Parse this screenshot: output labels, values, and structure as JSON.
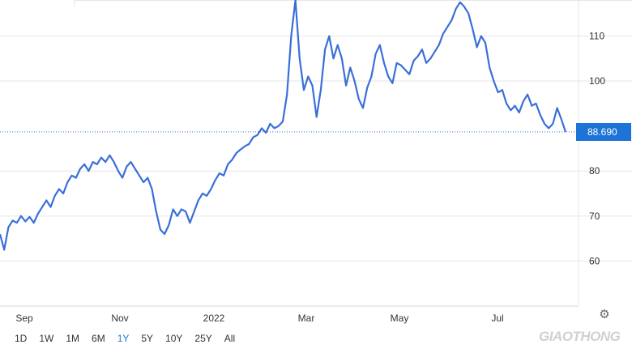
{
  "chart_data": {
    "type": "line",
    "title": "",
    "xlabel": "",
    "ylabel": "",
    "x_tick_labels": [
      "Sep",
      "Nov",
      "2022",
      "Mar",
      "May",
      "Jul"
    ],
    "y_tick_labels": [
      "60",
      "70",
      "80",
      "100",
      "110"
    ],
    "ylim": [
      50,
      118
    ],
    "last_value_label": "88.690",
    "line_color": "#3a6fd8",
    "series": [
      {
        "values": [
          66.0,
          62.5,
          67.5,
          69.0,
          68.5,
          70.0,
          68.8,
          69.8,
          68.5,
          70.5,
          72.0,
          73.5,
          72.0,
          74.5,
          76.0,
          75.0,
          77.5,
          79.0,
          78.5,
          80.5,
          81.5,
          80.0,
          82.0,
          81.5,
          83.0,
          82.0,
          83.5,
          82.0,
          80.0,
          78.5,
          81.0,
          82.0,
          80.5,
          79.0,
          77.5,
          78.5,
          76.0,
          71.0,
          67.0,
          66.0,
          68.0,
          71.5,
          70.0,
          71.5,
          71.0,
          68.5,
          71.0,
          73.5,
          75.0,
          74.5,
          76.0,
          78.0,
          79.5,
          79.0,
          81.5,
          82.5,
          84.0,
          84.8,
          85.5,
          86.0,
          87.5,
          88.0,
          89.5,
          88.5,
          90.5,
          89.5,
          90.0,
          91.0,
          97.0,
          110.0,
          118.0,
          105.0,
          98.0,
          101.0,
          99.0,
          92.0,
          98.0,
          107.0,
          110.0,
          105.0,
          108.0,
          105.0,
          99.0,
          103.0,
          100.0,
          96.0,
          94.0,
          98.5,
          101.0,
          106.0,
          108.0,
          104.0,
          101.0,
          99.5,
          104.0,
          103.5,
          102.5,
          101.5,
          104.5,
          105.5,
          107.0,
          104.0,
          105.0,
          106.5,
          108.0,
          110.5,
          112.0,
          113.5,
          116.0,
          117.5,
          116.5,
          115.0,
          111.5,
          107.5,
          110.0,
          108.5,
          103.0,
          100.0,
          97.5,
          98.0,
          95.0,
          93.5,
          94.5,
          93.0,
          95.5,
          97.0,
          94.5,
          95.0,
          92.5,
          90.5,
          89.5,
          90.5,
          94.0,
          91.5,
          88.69
        ]
      }
    ],
    "grid": true,
    "legend": "none"
  },
  "range_buttons": [
    "1D",
    "1W",
    "1M",
    "6M",
    "1Y",
    "5Y",
    "10Y",
    "25Y",
    "All"
  ],
  "active_range": "1Y",
  "watermark": "GIAOTHONG"
}
